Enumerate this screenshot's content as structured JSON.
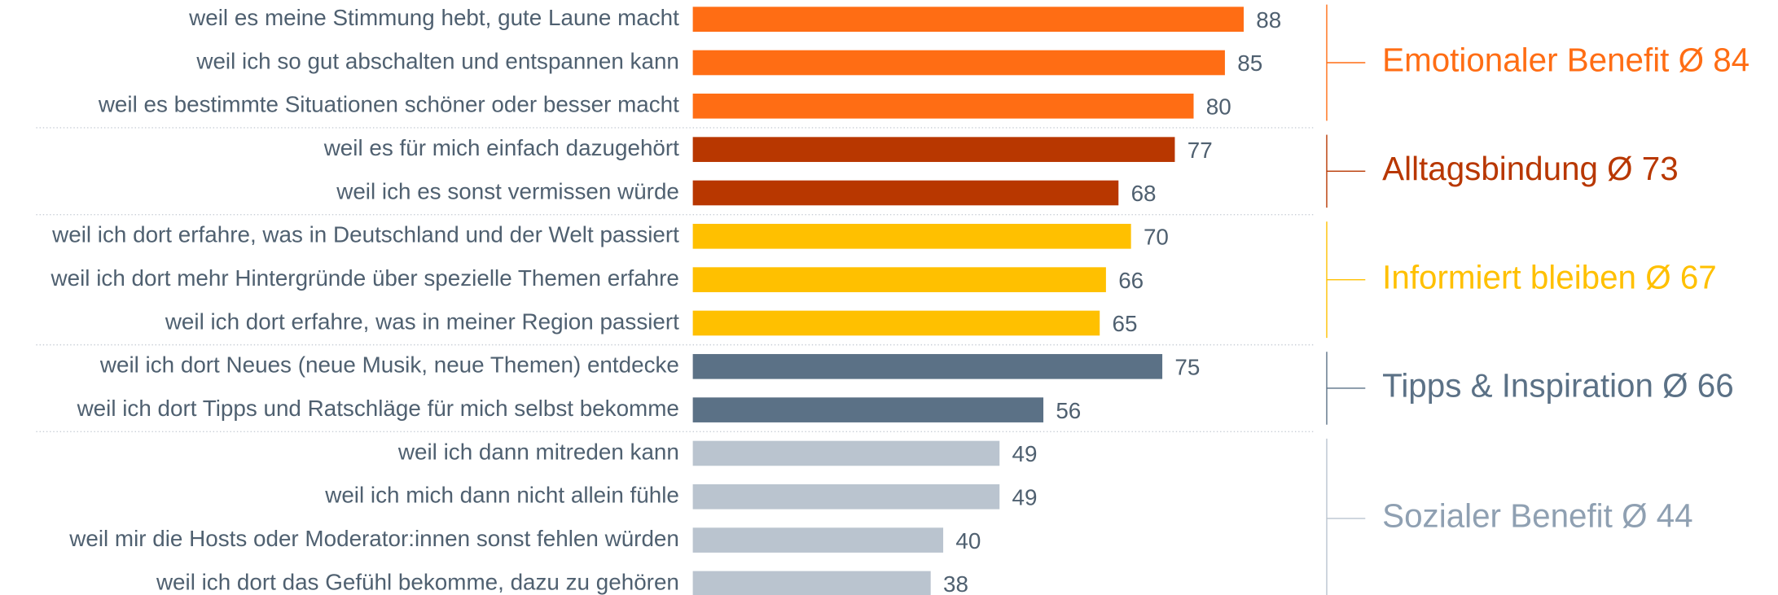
{
  "chart_data": {
    "type": "bar",
    "orientation": "horizontal",
    "xlim": [
      0,
      100
    ],
    "series": [
      {
        "name": "Emotionaler Benefit Ø 84",
        "color": "#FF6D14",
        "categories": [
          "weil es meine Stimmung hebt, gute Laune macht",
          "weil ich so gut abschalten und entspannen kann",
          "weil es bestimmte Situationen schöner oder besser macht"
        ],
        "values": [
          88,
          85,
          80
        ]
      },
      {
        "name": "Alltagsbindung Ø 73",
        "color": "#B83700",
        "categories": [
          "weil es für mich einfach dazugehört",
          "weil ich es sonst vermissen würde"
        ],
        "values": [
          77,
          68
        ]
      },
      {
        "name": "Informiert bleiben Ø 67",
        "color": "#FFC000",
        "categories": [
          "weil ich dort erfahre, was in Deutschland und der Welt passiert",
          "weil ich dort mehr Hintergründe über spezielle Themen erfahre",
          "weil ich dort erfahre, was in meiner Region passiert"
        ],
        "values": [
          70,
          66,
          65
        ]
      },
      {
        "name": "Tipps & Inspiration Ø 66",
        "color": "#5B7186",
        "categories": [
          "weil ich dort Neues (neue Musik, neue Themen) entdecke",
          "weil ich dort Tipps und Ratschläge für mich selbst bekomme"
        ],
        "values": [
          75,
          56
        ]
      },
      {
        "name": "Sozialer Benefit Ø 44",
        "color": "#BAC4CF",
        "categories": [
          "weil ich dann mitreden kann",
          "weil ich mich dann nicht allein fühle",
          "weil mir die Hosts oder Moderator:innen sonst fehlen würden",
          "weil ich dort das Gefühl bekomme, dazu zu gehören"
        ],
        "values": [
          49,
          49,
          40,
          38
        ]
      }
    ]
  }
}
